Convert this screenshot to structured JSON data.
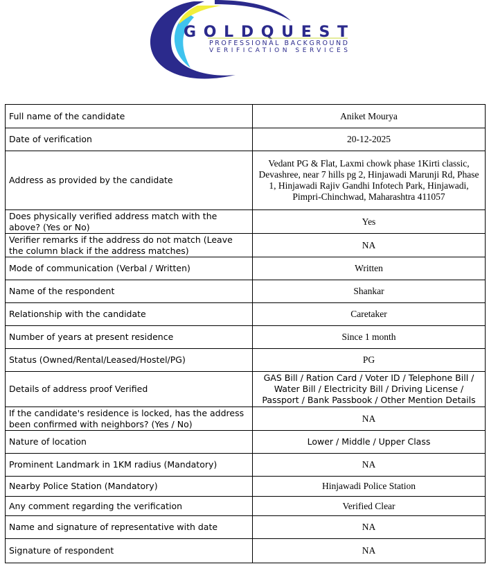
{
  "logo": {
    "brand": "GOLDQUEST",
    "tagline1": "PROFESSIONAL BACKGROUND",
    "tagline2": "VERIFICATION SERVICES",
    "colors": {
      "navy": "#2b2a8c",
      "yellow": "#f2ee3c",
      "cyan": "#3fc3ee"
    }
  },
  "rows": [
    {
      "label": "Full name of the candidate",
      "value": "Aniket Mourya"
    },
    {
      "label": "Date of verification",
      "value": "20-12-2025"
    },
    {
      "label": "Address as provided by the candidate",
      "value": "Vedant PG & Flat, Laxmi chowk phase 1Kirti classic, Devashree, near 7 hills pg 2, Hinjawadi Marunji Rd, Phase 1, Hinjawadi Rajiv Gandhi Infotech Park, Hinjawadi, Pimpri-Chinchwad, Maharashtra 411057"
    },
    {
      "label": "Does physically verified address match with the above? (Yes or No)",
      "value": "Yes"
    },
    {
      "label": "Verifier remarks if the address do not match (Leave the column black if the address matches)",
      "value": "NA"
    },
    {
      "label": "Mode of communication (Verbal / Written)",
      "value": "Written"
    },
    {
      "label": "Name of the respondent",
      "value": "Shankar"
    },
    {
      "label": "Relationship with the candidate",
      "value": "Caretaker"
    },
    {
      "label": "Number of years at present residence",
      "value": "Since 1 month"
    },
    {
      "label": "Status (Owned/Rental/Leased/Hostel/PG)",
      "value": "PG"
    },
    {
      "label": "Details of address proof Verified",
      "value": "GAS Bill / Ration Card / Voter ID / Telephone Bill / Water Bill / Electricity Bill / Driving License / Passport / Bank Passbook / Other Mention Details"
    },
    {
      "label": "If the candidate's residence is locked, has the address been confirmed with neighbors? (Yes / No)",
      "value": "NA"
    },
    {
      "label": "Nature of location",
      "value": "Lower / Middle / Upper Class"
    },
    {
      "label": "Prominent Landmark in 1KM radius (Mandatory)",
      "value": "NA"
    },
    {
      "label": "Nearby Police Station (Mandatory)",
      "value": "Hinjawadi Police Station"
    },
    {
      "label": "Any comment regarding the verification",
      "value": "Verified Clear"
    },
    {
      "label": "Name and signature of representative with date",
      "value": "NA"
    },
    {
      "label": "Signature of respondent",
      "value": "NA"
    }
  ]
}
